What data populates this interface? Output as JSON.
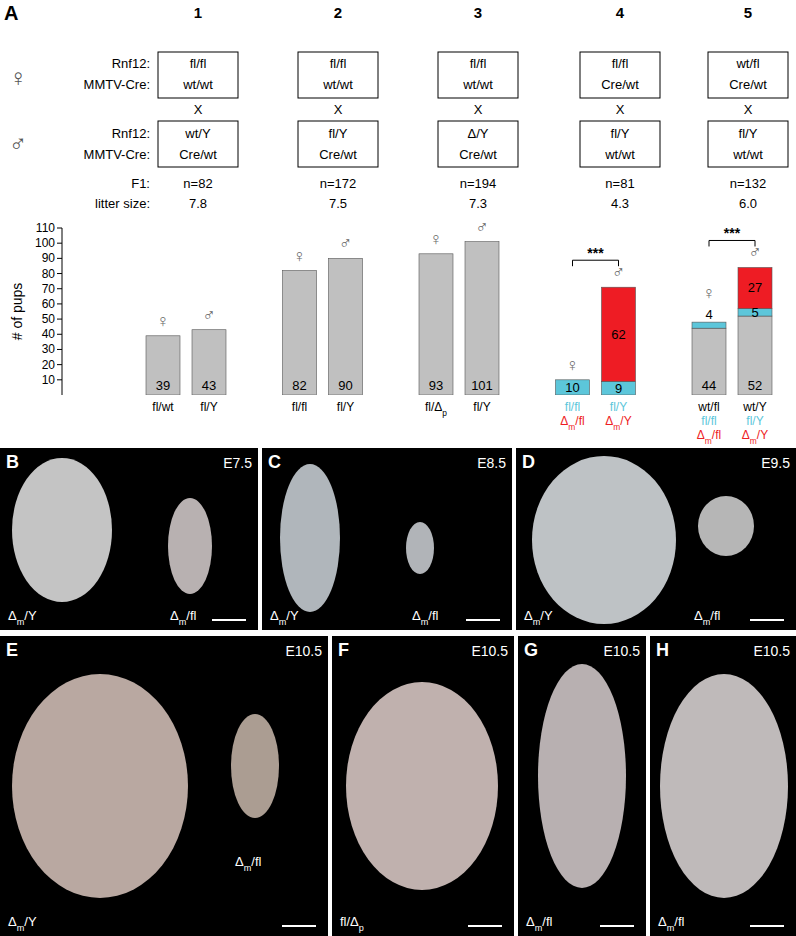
{
  "panel_label": "A",
  "crosses": {
    "row_labels": {
      "female": "♀",
      "male": "♂",
      "gene": "Rnf12:",
      "cre": "MMTV-Cre:",
      "cross": "X",
      "f1": "F1:",
      "litter": "litter size:"
    },
    "columns": [
      {
        "number": "1",
        "female": [
          "fl/fl",
          "wt/wt"
        ],
        "male": [
          "wt/Y",
          "Cre/wt"
        ],
        "f1": "n=82",
        "litter_size": "7.8"
      },
      {
        "number": "2",
        "female": [
          "fl/fl",
          "wt/wt"
        ],
        "male": [
          "fl/Y",
          "Cre/wt"
        ],
        "f1": "n=172",
        "litter_size": "7.5"
      },
      {
        "number": "3",
        "female": [
          "fl/fl",
          "wt/wt"
        ],
        "male": [
          "Δ/Y",
          "Cre/wt"
        ],
        "f1": "n=194",
        "litter_size": "7.3"
      },
      {
        "number": "4",
        "female": [
          "fl/fl",
          "Cre/wt"
        ],
        "male": [
          "fl/Y",
          "wt/wt"
        ],
        "f1": "n=81",
        "litter_size": "4.3"
      },
      {
        "number": "5",
        "female": [
          "wt/fl",
          "Cre/wt"
        ],
        "male": [
          "fl/Y",
          "wt/wt"
        ],
        "f1": "n=132",
        "litter_size": "6.0"
      }
    ]
  },
  "chart_data": {
    "type": "bar",
    "stacked": true,
    "data_labels": true,
    "ylabel": "# of pups",
    "ylim": [
      0,
      110
    ],
    "yticks": [
      10,
      20,
      30,
      40,
      50,
      60,
      70,
      80,
      90,
      100,
      110
    ],
    "categories": [
      [
        "fl/wt",
        null,
        null
      ],
      [
        "fl/Y",
        null,
        null
      ],
      [
        "fl/fl",
        null,
        null
      ],
      [
        "fl/Y",
        null,
        null
      ],
      [
        "fl/Δp",
        null,
        null
      ],
      [
        "fl/Y",
        null,
        null
      ],
      [
        null,
        "fl/fl",
        "Δm/fl"
      ],
      [
        null,
        "fl/Y",
        "Δm/Y"
      ],
      [
        "wt/fl",
        "fl/fl",
        "Δm/fl"
      ],
      [
        "wt/Y",
        "fl/Y",
        "Δm/Y"
      ]
    ],
    "bar_symbols": [
      "♀",
      "♂",
      "♀",
      "♂",
      "♀",
      "♂",
      "♀",
      "♂",
      "♀",
      "♂"
    ],
    "series": [
      {
        "color": "#c0c0c0",
        "values": [
          39,
          43,
          82,
          90,
          93,
          101,
          null,
          null,
          44,
          52
        ]
      },
      {
        "color": "#5cc6da",
        "values": [
          null,
          null,
          null,
          null,
          null,
          null,
          10,
          9,
          4,
          5
        ]
      },
      {
        "color": "#ee1c24",
        "values": [
          null,
          null,
          null,
          null,
          null,
          null,
          null,
          62,
          null,
          27
        ]
      }
    ],
    "annotations": [
      {
        "text": "***",
        "bars": [
          6,
          7
        ]
      },
      {
        "text": "***",
        "bars": [
          8,
          9
        ]
      }
    ]
  },
  "panels": [
    {
      "letter": "B",
      "stage": "E7.5",
      "labels": [
        "Δm/Y",
        "Δm/fl"
      ]
    },
    {
      "letter": "C",
      "stage": "E8.5",
      "labels": [
        "Δm/Y",
        "Δm/fl"
      ]
    },
    {
      "letter": "D",
      "stage": "E9.5",
      "labels": [
        "Δm/Y",
        "Δm/fl"
      ]
    },
    {
      "letter": "E",
      "stage": "E10.5",
      "labels": [
        "Δm/Y",
        "Δm/fl"
      ]
    },
    {
      "letter": "F",
      "stage": "E10.5",
      "labels": [
        "fl/Δp"
      ]
    },
    {
      "letter": "G",
      "stage": "E10.5",
      "labels": [
        "Δm/fl"
      ]
    },
    {
      "letter": "H",
      "stage": "E10.5",
      "labels": [
        "Δm/fl"
      ]
    }
  ]
}
